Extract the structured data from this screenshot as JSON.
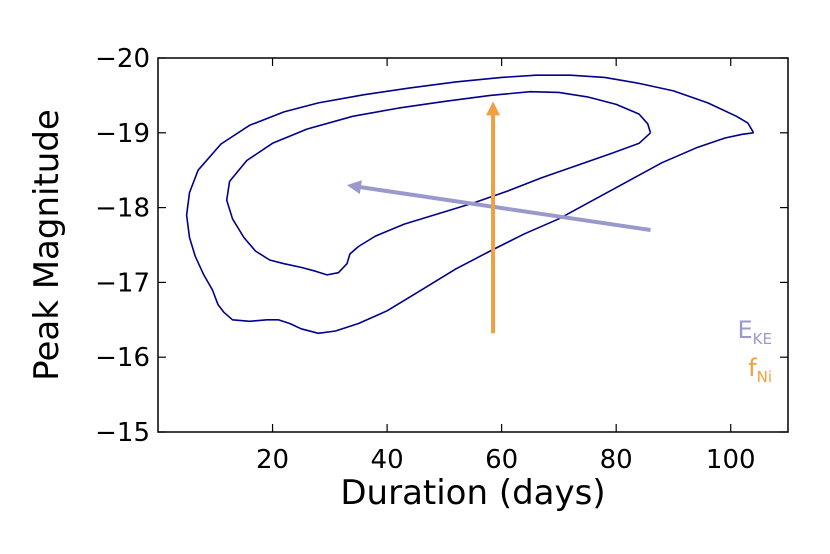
{
  "chart_data": {
    "type": "line",
    "title": "",
    "xlabel": "Duration (days)",
    "ylabel": "Peak Magnitude",
    "xlim": [
      0,
      110
    ],
    "ylim": [
      -15,
      -20
    ],
    "y_inverted": true,
    "grid": false,
    "x_ticks": [
      20,
      40,
      60,
      80,
      100
    ],
    "x_tick_labels": [
      "20",
      "40",
      "60",
      "80",
      "100"
    ],
    "y_ticks": [
      -20,
      -19,
      -18,
      -17,
      -16,
      -15
    ],
    "y_tick_labels": [
      "−20",
      "−19",
      "−18",
      "−17",
      "−16",
      "−15"
    ],
    "contour_color": "#00008b",
    "series": [
      {
        "kind": "contour",
        "color": "#00008b",
        "points": [
          [
            104,
            -19.0
          ],
          [
            103,
            -19.13
          ],
          [
            101,
            -19.22
          ],
          [
            96,
            -19.4
          ],
          [
            90,
            -19.56
          ],
          [
            84,
            -19.66
          ],
          [
            78,
            -19.74
          ],
          [
            72,
            -19.77
          ],
          [
            66,
            -19.77
          ],
          [
            60,
            -19.74
          ],
          [
            52,
            -19.68
          ],
          [
            44,
            -19.6
          ],
          [
            36,
            -19.51
          ],
          [
            28,
            -19.4
          ],
          [
            22,
            -19.28
          ],
          [
            16,
            -19.1
          ],
          [
            11,
            -18.85
          ],
          [
            7,
            -18.5
          ],
          [
            5.5,
            -18.2
          ],
          [
            5,
            -17.9
          ],
          [
            5.5,
            -17.6
          ],
          [
            6.5,
            -17.35
          ],
          [
            8,
            -17.1
          ],
          [
            9.5,
            -16.9
          ],
          [
            10.5,
            -16.7
          ],
          [
            11.5,
            -16.6
          ],
          [
            13,
            -16.5
          ],
          [
            16,
            -16.48
          ],
          [
            19,
            -16.5
          ],
          [
            21,
            -16.5
          ],
          [
            23,
            -16.45
          ],
          [
            25,
            -16.38
          ],
          [
            28,
            -16.32
          ],
          [
            31,
            -16.35
          ],
          [
            35,
            -16.45
          ],
          [
            40,
            -16.62
          ],
          [
            46,
            -16.9
          ],
          [
            52,
            -17.18
          ],
          [
            58,
            -17.42
          ],
          [
            64,
            -17.65
          ],
          [
            70,
            -17.85
          ],
          [
            76,
            -18.1
          ],
          [
            82,
            -18.35
          ],
          [
            88,
            -18.6
          ],
          [
            94,
            -18.8
          ],
          [
            99,
            -18.93
          ],
          [
            102,
            -18.98
          ],
          [
            104,
            -19.0
          ]
        ]
      },
      {
        "kind": "contour",
        "color": "#00008b",
        "points": [
          [
            86,
            -19.0
          ],
          [
            85.5,
            -19.12
          ],
          [
            84,
            -19.25
          ],
          [
            80,
            -19.38
          ],
          [
            75,
            -19.48
          ],
          [
            70,
            -19.54
          ],
          [
            65,
            -19.55
          ],
          [
            58,
            -19.5
          ],
          [
            50,
            -19.42
          ],
          [
            42,
            -19.33
          ],
          [
            34,
            -19.22
          ],
          [
            26,
            -19.05
          ],
          [
            20,
            -18.86
          ],
          [
            15.5,
            -18.63
          ],
          [
            12.5,
            -18.35
          ],
          [
            12,
            -18.1
          ],
          [
            13,
            -17.85
          ],
          [
            15,
            -17.6
          ],
          [
            17,
            -17.42
          ],
          [
            19.5,
            -17.3
          ],
          [
            22,
            -17.25
          ],
          [
            25,
            -17.2
          ],
          [
            27.5,
            -17.15
          ],
          [
            29.5,
            -17.1
          ],
          [
            31.5,
            -17.13
          ],
          [
            33,
            -17.25
          ],
          [
            33.5,
            -17.38
          ],
          [
            35,
            -17.48
          ],
          [
            38,
            -17.62
          ],
          [
            43,
            -17.78
          ],
          [
            49,
            -17.92
          ],
          [
            55,
            -18.06
          ],
          [
            61,
            -18.22
          ],
          [
            67,
            -18.4
          ],
          [
            73,
            -18.56
          ],
          [
            79,
            -18.72
          ],
          [
            84,
            -18.86
          ],
          [
            86,
            -19.0
          ]
        ]
      },
      {
        "kind": "arrow",
        "name": "E_KE",
        "color": "#9999cc",
        "from": [
          86,
          -17.7
        ],
        "to": [
          33,
          -18.3
        ]
      },
      {
        "kind": "arrow",
        "name": "f_Ni",
        "color": "#f0a040",
        "from": [
          58.5,
          -16.32
        ],
        "to": [
          58.5,
          -19.42
        ]
      }
    ],
    "legend": {
      "placement": "bottom-right",
      "entries": [
        {
          "main": "E",
          "sub": "KE",
          "color": "#9999cc"
        },
        {
          "main": "f",
          "sub": "Ni",
          "color": "#f0a040"
        }
      ]
    }
  }
}
